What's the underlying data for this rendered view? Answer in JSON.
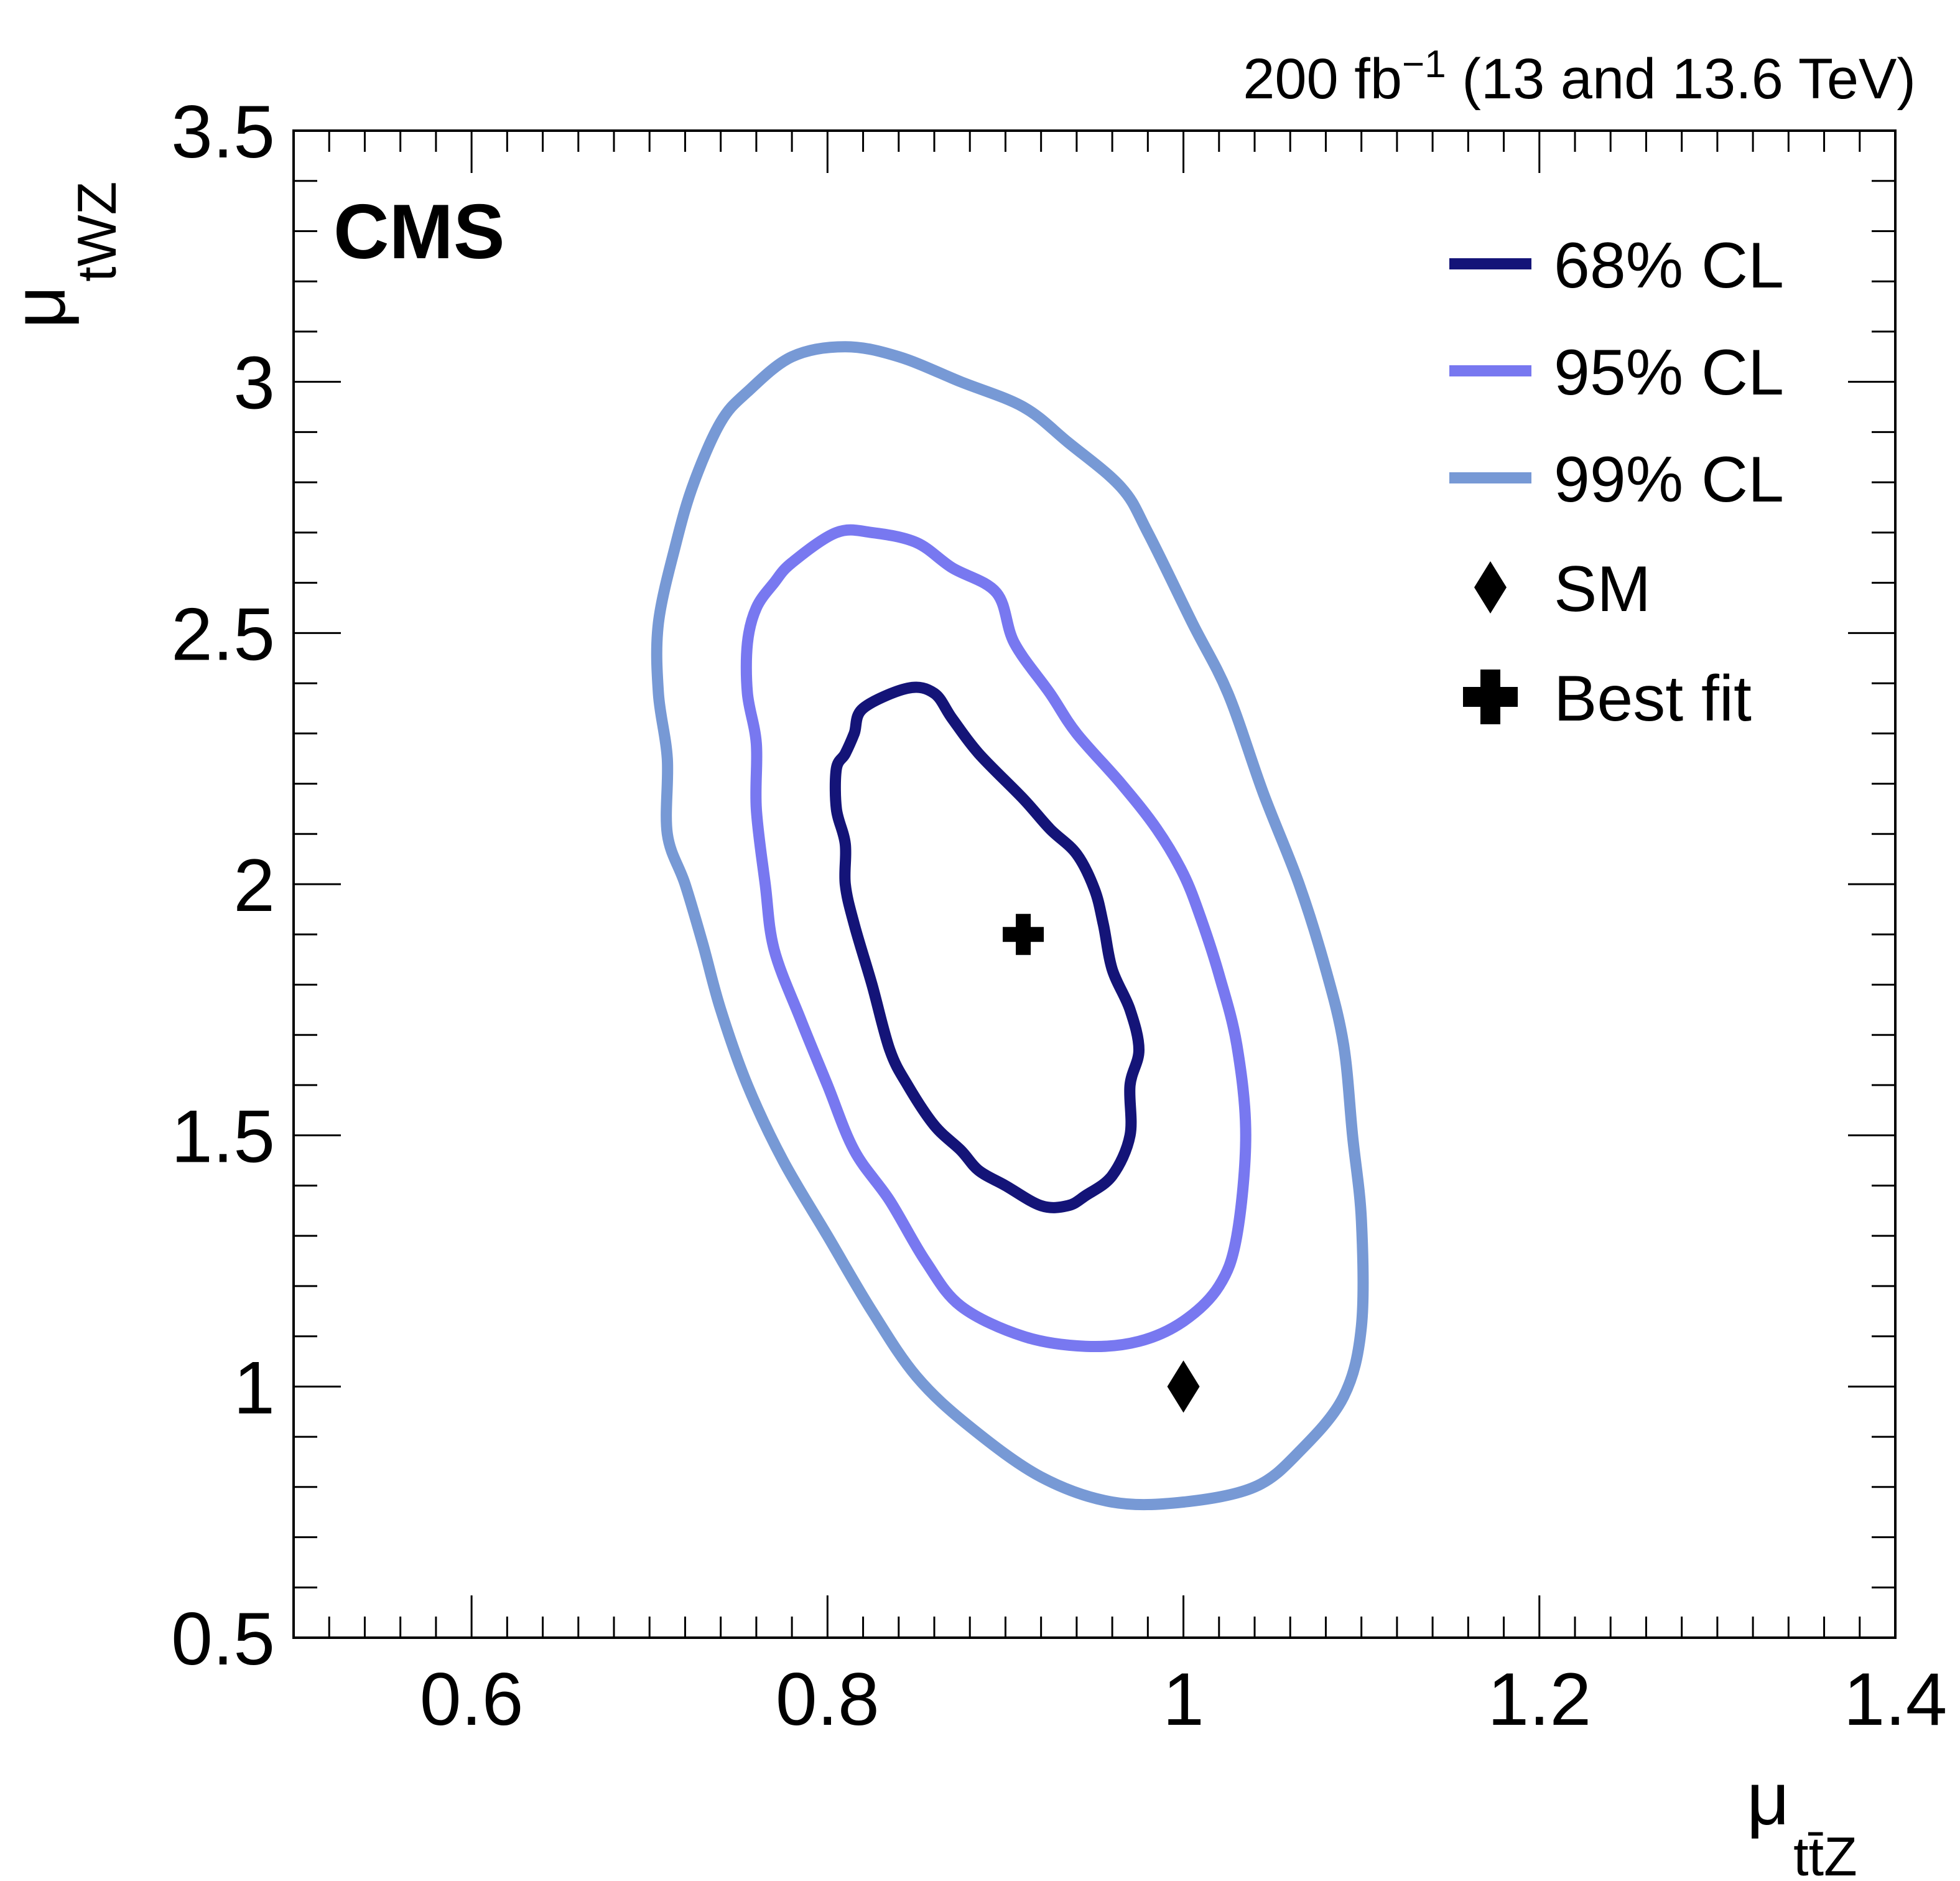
{
  "chart_data": {
    "type": "contour",
    "lumi_label": {
      "main": "200 fb",
      "exponent": "−1",
      "suffix": " (13 and 13.6 TeV)"
    },
    "experiment_label": "CMS",
    "x_axis": {
      "symbol": "μ",
      "subscript": "tt̄Z",
      "range": [
        0.5,
        1.4
      ],
      "major_ticks": [
        0.6,
        0.8,
        1.0,
        1.2,
        1.4
      ],
      "tick_labels": [
        "0.6",
        "0.8",
        "1",
        "1.2",
        "1.4"
      ],
      "minor_step": 0.02
    },
    "y_axis": {
      "symbol": "μ",
      "subscript": "tWZ",
      "range": [
        0.5,
        3.5
      ],
      "major_ticks": [
        0.5,
        1.0,
        1.5,
        2.0,
        2.5,
        3.0,
        3.5
      ],
      "tick_labels": [
        "0.5",
        "1",
        "1.5",
        "2",
        "2.5",
        "3",
        "3.5"
      ],
      "minor_step": 0.1
    },
    "contours": [
      {
        "name": "68% CL",
        "color": "#141478",
        "points": [
          [
            0.91,
            2.17
          ],
          [
            0.885,
            2.26
          ],
          [
            0.87,
            2.33
          ],
          [
            0.86,
            2.38
          ],
          [
            0.845,
            2.39
          ],
          [
            0.82,
            2.35
          ],
          [
            0.815,
            2.3
          ],
          [
            0.81,
            2.26
          ],
          [
            0.805,
            2.23
          ],
          [
            0.805,
            2.15
          ],
          [
            0.81,
            2.08
          ],
          [
            0.81,
            2.0
          ],
          [
            0.815,
            1.92
          ],
          [
            0.825,
            1.8
          ],
          [
            0.835,
            1.67
          ],
          [
            0.845,
            1.6
          ],
          [
            0.86,
            1.52
          ],
          [
            0.875,
            1.47
          ],
          [
            0.885,
            1.43
          ],
          [
            0.9,
            1.4
          ],
          [
            0.92,
            1.36
          ],
          [
            0.935,
            1.36
          ],
          [
            0.945,
            1.38
          ],
          [
            0.96,
            1.42
          ],
          [
            0.97,
            1.5
          ],
          [
            0.97,
            1.6
          ],
          [
            0.975,
            1.67
          ],
          [
            0.97,
            1.75
          ],
          [
            0.96,
            1.83
          ],
          [
            0.955,
            1.92
          ],
          [
            0.95,
            1.99
          ],
          [
            0.94,
            2.06
          ],
          [
            0.925,
            2.11
          ]
        ]
      },
      {
        "name": "95% CL",
        "color": "#7878f0",
        "points": [
          [
            0.905,
            2.48
          ],
          [
            0.895,
            2.58
          ],
          [
            0.87,
            2.63
          ],
          [
            0.85,
            2.68
          ],
          [
            0.825,
            2.7
          ],
          [
            0.805,
            2.7
          ],
          [
            0.78,
            2.64
          ],
          [
            0.77,
            2.6
          ],
          [
            0.76,
            2.55
          ],
          [
            0.755,
            2.48
          ],
          [
            0.755,
            2.38
          ],
          [
            0.76,
            2.28
          ],
          [
            0.76,
            2.15
          ],
          [
            0.765,
            2.0
          ],
          [
            0.77,
            1.87
          ],
          [
            0.785,
            1.73
          ],
          [
            0.8,
            1.6
          ],
          [
            0.815,
            1.47
          ],
          [
            0.835,
            1.37
          ],
          [
            0.855,
            1.25
          ],
          [
            0.875,
            1.16
          ],
          [
            0.91,
            1.1
          ],
          [
            0.945,
            1.08
          ],
          [
            0.975,
            1.09
          ],
          [
            1.0,
            1.13
          ],
          [
            1.02,
            1.2
          ],
          [
            1.03,
            1.3
          ],
          [
            1.035,
            1.5
          ],
          [
            1.03,
            1.68
          ],
          [
            1.02,
            1.82
          ],
          [
            1.01,
            1.93
          ],
          [
            1.0,
            2.02
          ],
          [
            0.985,
            2.11
          ],
          [
            0.965,
            2.2
          ],
          [
            0.94,
            2.3
          ],
          [
            0.925,
            2.38
          ]
        ]
      },
      {
        "name": "99% CL",
        "color": "#7799d5",
        "points": [
          [
            0.98,
            2.7
          ],
          [
            0.965,
            2.79
          ],
          [
            0.935,
            2.88
          ],
          [
            0.91,
            2.95
          ],
          [
            0.875,
            3.0
          ],
          [
            0.84,
            3.05
          ],
          [
            0.81,
            3.07
          ],
          [
            0.78,
            3.05
          ],
          [
            0.755,
            2.98
          ],
          [
            0.74,
            2.92
          ],
          [
            0.725,
            2.8
          ],
          [
            0.715,
            2.68
          ],
          [
            0.705,
            2.52
          ],
          [
            0.705,
            2.38
          ],
          [
            0.71,
            2.25
          ],
          [
            0.71,
            2.1
          ],
          [
            0.72,
            2.0
          ],
          [
            0.73,
            1.88
          ],
          [
            0.74,
            1.75
          ],
          [
            0.755,
            1.6
          ],
          [
            0.775,
            1.45
          ],
          [
            0.8,
            1.3
          ],
          [
            0.825,
            1.15
          ],
          [
            0.85,
            1.02
          ],
          [
            0.88,
            0.92
          ],
          [
            0.92,
            0.82
          ],
          [
            0.96,
            0.77
          ],
          [
            1.0,
            0.77
          ],
          [
            1.04,
            0.8
          ],
          [
            1.065,
            0.87
          ],
          [
            1.09,
            0.98
          ],
          [
            1.1,
            1.12
          ],
          [
            1.1,
            1.33
          ],
          [
            1.095,
            1.5
          ],
          [
            1.09,
            1.68
          ],
          [
            1.08,
            1.83
          ],
          [
            1.065,
            2.0
          ],
          [
            1.045,
            2.18
          ],
          [
            1.025,
            2.38
          ],
          [
            1.005,
            2.52
          ]
        ]
      }
    ],
    "markers": [
      {
        "name": "SM",
        "x": 1.0,
        "y": 1.0,
        "shape": "diamond"
      },
      {
        "name": "Best fit",
        "x": 0.91,
        "y": 1.9,
        "shape": "cross"
      }
    ],
    "legend": {
      "position": "top-right",
      "entries": [
        {
          "label": "68% CL",
          "kind": "line",
          "color": "#141478"
        },
        {
          "label": "95% CL",
          "kind": "line",
          "color": "#7878f0"
        },
        {
          "label": "99% CL",
          "kind": "line",
          "color": "#7799d5"
        },
        {
          "label": "SM",
          "kind": "diamond",
          "color": "#000000"
        },
        {
          "label": "Best fit",
          "kind": "cross",
          "color": "#000000"
        }
      ]
    }
  }
}
